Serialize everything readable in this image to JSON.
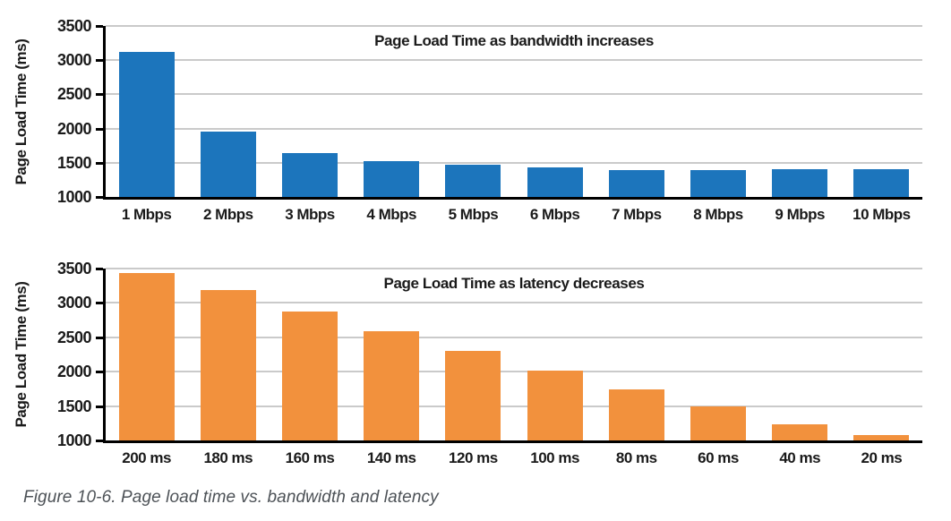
{
  "page": {
    "caption": "Figure 10-6. Page load time vs. bandwidth and latency"
  },
  "colors": {
    "bandwidth_bar": "#1c75bc",
    "latency_bar": "#f2913d",
    "gridline": "#cacaca",
    "axis": "#000000",
    "caption_text": "#4d5257",
    "text": "#1a1a1a"
  },
  "chart_data": [
    {
      "type": "bar",
      "title": "Page Load Time as bandwidth increases",
      "xlabel": "",
      "ylabel": "Page Load Time (ms)",
      "ylim": [
        1000,
        3500
      ],
      "yticks": [
        1000,
        1500,
        2000,
        2500,
        3000,
        3500
      ],
      "grid": true,
      "legend_position": "none",
      "bar_color_key": "bandwidth_bar",
      "categories": [
        "1 Mbps",
        "2 Mbps",
        "3 Mbps",
        "4 Mbps",
        "5 Mbps",
        "6 Mbps",
        "7 Mbps",
        "8 Mbps",
        "9 Mbps",
        "10 Mbps"
      ],
      "values": [
        3120,
        1950,
        1640,
        1520,
        1470,
        1430,
        1390,
        1390,
        1400,
        1400
      ]
    },
    {
      "type": "bar",
      "title": "Page Load Time as latency decreases",
      "xlabel": "",
      "ylabel": "Page Load Time (ms)",
      "ylim": [
        1000,
        3500
      ],
      "yticks": [
        1000,
        1500,
        2000,
        2500,
        3000,
        3500
      ],
      "grid": true,
      "legend_position": "none",
      "bar_color_key": "latency_bar",
      "categories": [
        "200 ms",
        "180 ms",
        "160 ms",
        "140 ms",
        "120 ms",
        "100 ms",
        "80 ms",
        "60 ms",
        "40 ms",
        "20 ms"
      ],
      "values": [
        3430,
        3190,
        2880,
        2590,
        2300,
        2010,
        1740,
        1500,
        1240,
        1080
      ]
    }
  ]
}
